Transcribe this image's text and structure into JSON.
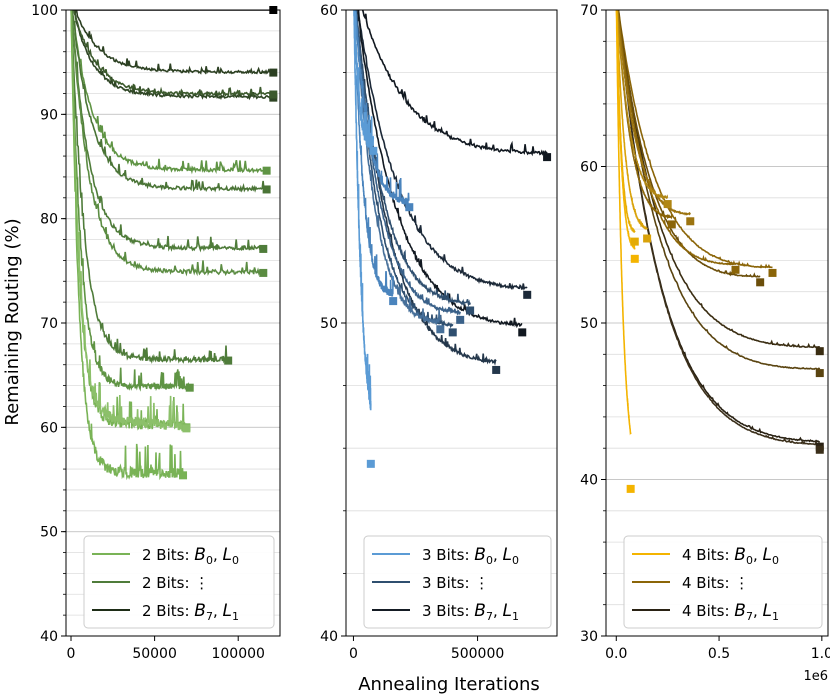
{
  "figure": {
    "ylabel": "Remaining Routing (%)",
    "xlabel": "Annealing Iterations"
  },
  "chart_data": [
    {
      "type": "line",
      "id": "panel-2bits",
      "xlim": [
        -3000,
        125000
      ],
      "ylim": [
        40,
        100
      ],
      "xticks": [
        0,
        50000,
        100000
      ],
      "xtick_labels": [
        "0",
        "50000",
        "100000"
      ],
      "yticks": [
        40,
        50,
        60,
        70,
        80,
        90,
        100
      ],
      "ytick_labels": [
        "40",
        "50",
        "60",
        "70",
        "80",
        "90",
        "100"
      ],
      "grid": "horizontal",
      "palette": [
        "#79b356",
        "#4f7c3a",
        "#1e2d17"
      ],
      "legend": {
        "position": "bottom-right",
        "entries": [
          {
            "pre": "2 Bits: ",
            "b": "B",
            "bsub": "0",
            "l": "L",
            "lsub": "0",
            "color": "#79b356"
          },
          {
            "pre": "2 Bits:",
            "dots": "⋮",
            "color": "#4f7c3a"
          },
          {
            "pre": "2 Bits: ",
            "b": "B",
            "bsub": "7",
            "l": "L",
            "lsub": "1",
            "color": "#1e2d17"
          }
        ]
      },
      "series": [
        {
          "end_x": 121000,
          "end_y": 100,
          "plateau": 100,
          "k": 1,
          "noise": 0,
          "color": "#000000"
        },
        {
          "end_x": 121000,
          "end_y": 94.0,
          "plateau": 94.0,
          "k": 0.12,
          "noise": 0.25,
          "color": "#2c4022"
        },
        {
          "end_x": 121000,
          "end_y": 91.6,
          "plateau": 91.7,
          "k": 0.1,
          "noise": 0.25,
          "color": "#2e4524"
        },
        {
          "end_x": 121000,
          "end_y": 91.9,
          "plateau": 91.9,
          "k": 0.11,
          "noise": 0.25,
          "color": "#3c5a2d"
        },
        {
          "end_x": 117000,
          "end_y": 84.6,
          "plateau": 84.6,
          "k": 0.1,
          "noise": 0.35,
          "color": "#5f9444"
        },
        {
          "end_x": 117000,
          "end_y": 82.8,
          "plateau": 82.8,
          "k": 0.1,
          "noise": 0.35,
          "color": "#4a7436"
        },
        {
          "end_x": 115000,
          "end_y": 77.1,
          "plateau": 77.1,
          "k": 0.09,
          "noise": 0.4,
          "color": "#4f7c3a"
        },
        {
          "end_x": 115000,
          "end_y": 74.8,
          "plateau": 74.8,
          "k": 0.09,
          "noise": 0.4,
          "color": "#5b8c42"
        },
        {
          "end_x": 94000,
          "end_y": 66.4,
          "plateau": 66.4,
          "k": 0.08,
          "noise": 0.5,
          "color": "#4f7c3a"
        },
        {
          "end_x": 71000,
          "end_y": 63.8,
          "plateau": 63.8,
          "k": 0.08,
          "noise": 0.6,
          "color": "#5f9444"
        },
        {
          "end_x": 69000,
          "end_y": 60.0,
          "plateau": 60.2,
          "k": 0.07,
          "noise": 1.0,
          "color": "#79b356"
        },
        {
          "end_x": 69000,
          "end_y": 59.9,
          "plateau": 60.8,
          "k": 0.07,
          "noise": 1.0,
          "color": "#8cc06a"
        },
        {
          "end_x": 67000,
          "end_y": 55.4,
          "plateau": 55.5,
          "k": 0.07,
          "noise": 1.0,
          "color": "#79b356"
        }
      ]
    },
    {
      "type": "line",
      "id": "panel-3bits",
      "xlim": [
        -30000,
        820000
      ],
      "ylim": [
        40,
        60
      ],
      "xticks": [
        0,
        500000
      ],
      "xtick_labels": [
        "0",
        "500000"
      ],
      "yticks": [
        40,
        50,
        60
      ],
      "ytick_labels": [
        "40",
        "50",
        "60"
      ],
      "grid": "horizontal",
      "palette": [
        "#5b9bd5",
        "#2f4f6f",
        "#151c24"
      ],
      "legend": {
        "position": "bottom-right",
        "entries": [
          {
            "pre": "3 Bits: ",
            "b": "B",
            "bsub": "0",
            "l": "L",
            "lsub": "0",
            "color": "#5b9bd5"
          },
          {
            "pre": "3 Bits:",
            "dots": "⋮",
            "color": "#2f4f6f"
          },
          {
            "pre": "3 Bits: ",
            "b": "B",
            "bsub": "7",
            "l": "L",
            "lsub": "1",
            "color": "#151c24"
          }
        ]
      },
      "series": [
        {
          "end_x": 780000,
          "end_y": 55.3,
          "plateau": 54.9,
          "k": 0.25,
          "noise": 0.1,
          "color": "#111820"
        },
        {
          "end_x": 700000,
          "end_y": 50.9,
          "plateau": 50.4,
          "k": 0.25,
          "noise": 0.1,
          "color": "#1c2938"
        },
        {
          "end_x": 680000,
          "end_y": 49.7,
          "plateau": 49.2,
          "k": 0.25,
          "noise": 0.1,
          "color": "#111820"
        },
        {
          "end_x": 575000,
          "end_y": 48.5,
          "plateau": 47.9,
          "k": 0.25,
          "noise": 0.1,
          "color": "#24374b"
        },
        {
          "end_x": 470000,
          "end_y": 50.4,
          "plateau": 49.8,
          "k": 0.25,
          "noise": 0.1,
          "color": "#2f4f6f"
        },
        {
          "end_x": 430000,
          "end_y": 50.1,
          "plateau": 49.4,
          "k": 0.25,
          "noise": 0.1,
          "color": "#3a6189"
        },
        {
          "end_x": 400000,
          "end_y": 49.7,
          "plateau": 49.0,
          "k": 0.25,
          "noise": 0.1,
          "color": "#2f4f6f"
        },
        {
          "end_x": 350000,
          "end_y": 49.8,
          "plateau": 49.0,
          "k": 0.25,
          "noise": 0.15,
          "color": "#466f99"
        },
        {
          "end_x": 225000,
          "end_y": 53.7,
          "plateau": 53.2,
          "k": 0.25,
          "noise": 0.25,
          "color": "#4a84bd"
        },
        {
          "end_x": 160000,
          "end_y": 50.7,
          "plateau": 50.0,
          "k": 0.25,
          "noise": 0.25,
          "color": "#4a84bd"
        },
        {
          "end_x": 80000,
          "end_y": 55.5,
          "plateau": 54.0,
          "k": 0.3,
          "noise": 0.35,
          "color": "#5b9bd5"
        },
        {
          "end_x": 70000,
          "end_y": 45.5,
          "plateau": 44.5,
          "k": 0.45,
          "noise": 0.4,
          "color": "#5b9bd5"
        }
      ]
    },
    {
      "type": "line",
      "id": "panel-4bits",
      "xlim": [
        -0.05,
        1.03
      ],
      "ylim": [
        30,
        70
      ],
      "xticks": [
        0.0,
        0.5,
        1.0
      ],
      "xtick_labels": [
        "0.0",
        "0.5",
        "1.0"
      ],
      "x_offset_label": "1e6",
      "yticks": [
        30,
        40,
        50,
        60,
        70
      ],
      "ytick_labels": [
        "30",
        "40",
        "50",
        "60",
        "70"
      ],
      "grid": "horizontal",
      "palette": [
        "#f4b400",
        "#8b6508",
        "#2a2214"
      ],
      "legend": {
        "position": "bottom-right",
        "entries": [
          {
            "pre": "4 Bits: ",
            "b": "B",
            "bsub": "0",
            "l": "L",
            "lsub": "0",
            "color": "#f4b400"
          },
          {
            "pre": "4 Bits:",
            "dots": "⋮",
            "color": "#8b6508"
          },
          {
            "pre": "4 Bits: ",
            "b": "B",
            "bsub": "7",
            "l": "L",
            "lsub": "1",
            "color": "#2a2214"
          }
        ]
      },
      "series": [
        {
          "end_x": 0.99,
          "end_y": 48.2,
          "plateau": 47.0,
          "k": 0.22,
          "noise": 0.05,
          "color": "#3a2d12"
        },
        {
          "end_x": 0.99,
          "end_y": 46.8,
          "plateau": 45.5,
          "k": 0.22,
          "noise": 0.05,
          "color": "#5a4410"
        },
        {
          "end_x": 0.99,
          "end_y": 42.1,
          "plateau": 41.2,
          "k": 0.22,
          "noise": 0.05,
          "color": "#2a2214"
        },
        {
          "end_x": 0.99,
          "end_y": 41.9,
          "plateau": 41.0,
          "k": 0.22,
          "noise": 0.05,
          "color": "#3b2f1a"
        },
        {
          "end_x": 0.76,
          "end_y": 53.2,
          "plateau": 51.8,
          "k": 0.25,
          "noise": 0.05,
          "color": "#8b6508"
        },
        {
          "end_x": 0.7,
          "end_y": 52.6,
          "plateau": 51.0,
          "k": 0.25,
          "noise": 0.05,
          "color": "#6b4e0a"
        },
        {
          "end_x": 0.58,
          "end_y": 53.4,
          "plateau": 52.0,
          "k": 0.25,
          "noise": 0.05,
          "color": "#8b6508"
        },
        {
          "end_x": 0.36,
          "end_y": 56.5,
          "plateau": 55.0,
          "k": 0.28,
          "noise": 0.06,
          "color": "#9c7410"
        },
        {
          "end_x": 0.27,
          "end_y": 56.3,
          "plateau": 54.8,
          "k": 0.28,
          "noise": 0.06,
          "color": "#8b6508"
        },
        {
          "end_x": 0.25,
          "end_y": 57.6,
          "plateau": 56.2,
          "k": 0.28,
          "noise": 0.06,
          "color": "#b08614"
        },
        {
          "end_x": 0.15,
          "end_y": 55.4,
          "plateau": 53.9,
          "k": 0.3,
          "noise": 0.08,
          "color": "#d9a20a"
        },
        {
          "end_x": 0.09,
          "end_y": 55.2,
          "plateau": 53.5,
          "k": 0.3,
          "noise": 0.08,
          "color": "#e3ab05"
        },
        {
          "end_x": 0.09,
          "end_y": 54.1,
          "plateau": 52.6,
          "k": 0.3,
          "noise": 0.08,
          "color": "#f4b400"
        },
        {
          "end_x": 0.07,
          "end_y": 39.4,
          "plateau": 38.8,
          "k": 0.45,
          "noise": 0.1,
          "color": "#f4b400"
        }
      ]
    }
  ]
}
